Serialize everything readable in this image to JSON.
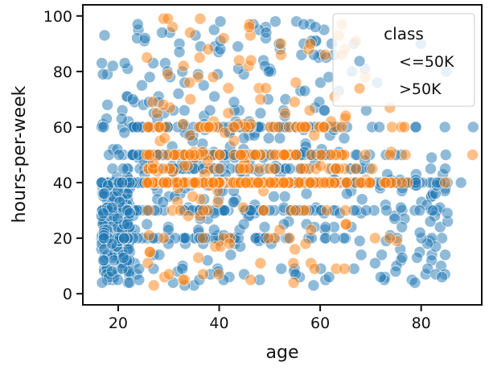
{
  "chart_data": {
    "type": "scatter",
    "title": "",
    "xlabel": "age",
    "ylabel": "hours-per-week",
    "xlim": [
      13,
      92
    ],
    "ylim": [
      -4,
      104
    ],
    "xticks": [
      20,
      40,
      60,
      80
    ],
    "yticks": [
      0,
      20,
      40,
      60,
      80,
      100
    ],
    "grid": false,
    "legend": {
      "title": "class",
      "placement": "top-right",
      "entries": [
        {
          "label": "<=50K",
          "color": "#1f77b4"
        },
        {
          "label": ">50K",
          "color": "#ff7f0e"
        }
      ]
    },
    "marker_alpha": 0.5,
    "series": [
      {
        "name": "<=50K",
        "color": "#1f77b4",
        "points": []
      },
      {
        "name": ">50K",
        "color": "#ff7f0e",
        "points": []
      }
    ]
  }
}
